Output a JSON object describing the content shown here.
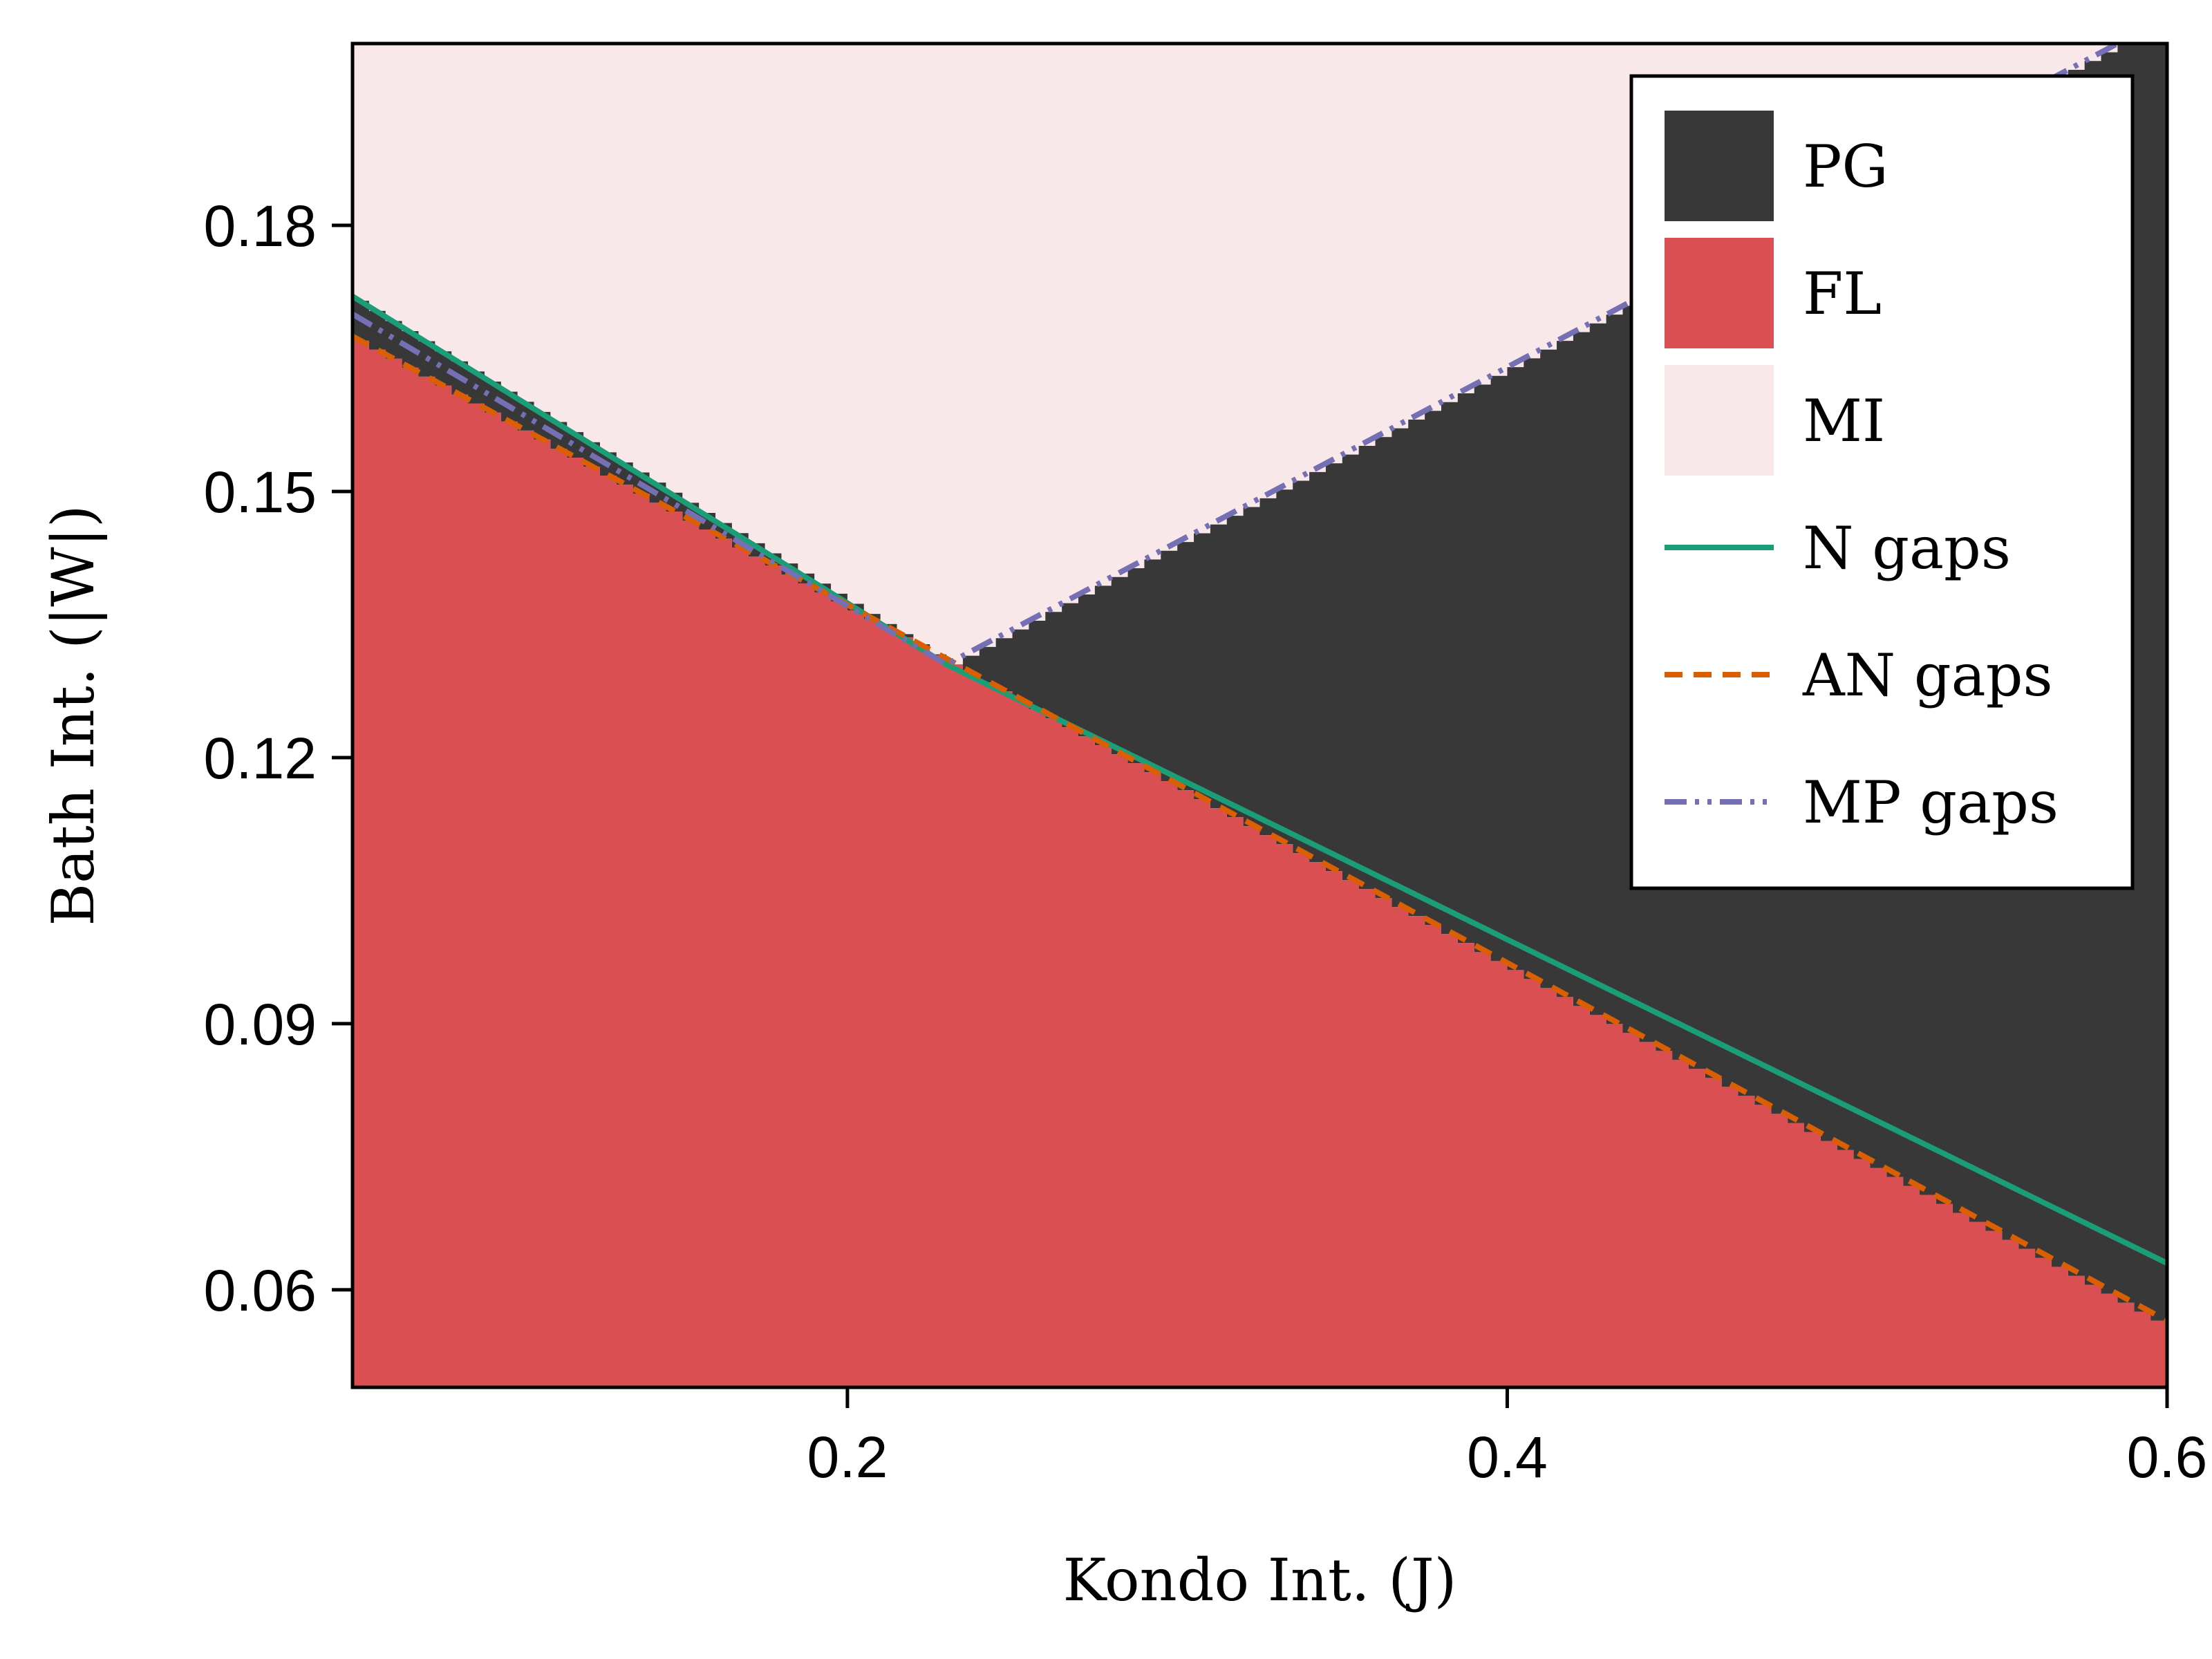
{
  "chart_data": {
    "type": "area",
    "xlabel": "Kondo Int. (J)",
    "ylabel": "Bath Int. (|W|)",
    "xlim": [
      0.05,
      0.6
    ],
    "ylim": [
      0.049,
      0.2005
    ],
    "xticks": [
      0.2,
      0.4,
      0.6
    ],
    "xtick_labels": [
      "0.2",
      "0.4",
      "0.6"
    ],
    "yticks": [
      0.06,
      0.09,
      0.12,
      0.15,
      0.18
    ],
    "ytick_labels": [
      "0.06",
      "0.09",
      "0.12",
      "0.15",
      "0.18"
    ],
    "legend_position": "top-right",
    "regions": [
      {
        "name": "PG",
        "color": "#383838"
      },
      {
        "name": "FL",
        "color": "#d94f52"
      },
      {
        "name": "MI",
        "color": "#f8e8e9"
      }
    ],
    "series": [
      {
        "name": "N gaps",
        "color": "#1b9e77",
        "style": "solid",
        "x": [
          0.05,
          0.23,
          0.6
        ],
        "y": [
          0.172,
          0.1305,
          0.063
        ]
      },
      {
        "name": "AN gaps",
        "color": "#d95f02",
        "style": "dashed",
        "x": [
          0.05,
          0.6
        ],
        "y": [
          0.1675,
          0.0565
        ]
      },
      {
        "name": "MP gaps",
        "color": "#7570b3",
        "style": "dashdot",
        "x": [
          0.05,
          0.23,
          0.585
        ],
        "y": [
          0.17,
          0.1305,
          0.2005
        ]
      }
    ],
    "fl_boundary": {
      "x": [
        0.05,
        0.6
      ],
      "y": [
        0.167,
        0.0555
      ]
    },
    "pg_mi_boundary": {
      "x": [
        0.05,
        0.23,
        0.585
      ],
      "y": [
        0.1715,
        0.1305,
        0.2005
      ]
    }
  }
}
